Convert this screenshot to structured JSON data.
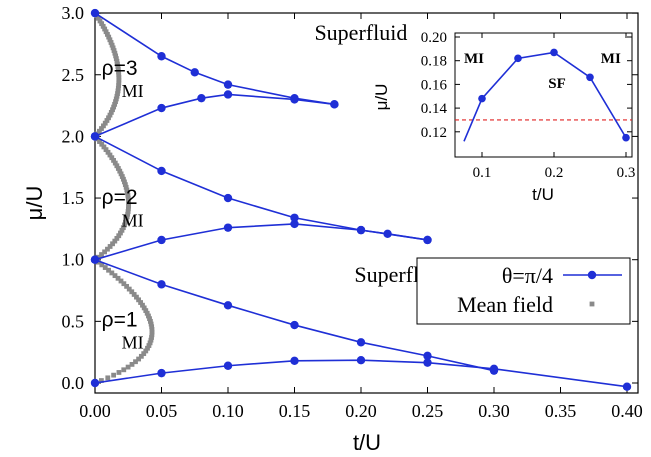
{
  "chart_data": [
    {
      "type": "line",
      "xlabel": "t/U",
      "ylabel": "μ/U",
      "xlim": [
        0,
        0.42
      ],
      "ylim": [
        -0.05,
        3.0
      ],
      "xticks": [
        "0.00",
        "0.05",
        "0.10",
        "0.15",
        "0.20",
        "0.25",
        "0.30",
        "0.35",
        "0.40"
      ],
      "yticks": [
        "0.0",
        "0.5",
        "1.0",
        "1.5",
        "2.0",
        "2.5",
        "3.0"
      ],
      "grid": false,
      "legend": "inside, right-middle",
      "series": [
        {
          "name": "θ=π/4",
          "color": "#1f2fd6",
          "marker": "circle",
          "segments": [
            [
              [
                0.0,
                0.0
              ],
              [
                0.05,
                0.08
              ],
              [
                0.1,
                0.14
              ],
              [
                0.15,
                0.18
              ],
              [
                0.2,
                0.185
              ],
              [
                0.25,
                0.165
              ],
              [
                0.3,
                0.115
              ],
              [
                0.4,
                -0.03
              ]
            ],
            [
              [
                0.0,
                1.0
              ],
              [
                0.05,
                0.8
              ],
              [
                0.1,
                0.63
              ],
              [
                0.15,
                0.47
              ],
              [
                0.2,
                0.33
              ],
              [
                0.25,
                0.22
              ],
              [
                0.3,
                0.1
              ]
            ],
            [
              [
                0.0,
                1.0
              ],
              [
                0.05,
                1.16
              ],
              [
                0.1,
                1.26
              ],
              [
                0.15,
                1.29
              ],
              [
                0.2,
                1.24
              ],
              [
                0.22,
                1.21
              ],
              [
                0.25,
                1.16
              ]
            ],
            [
              [
                0.0,
                2.0
              ],
              [
                0.05,
                1.72
              ],
              [
                0.1,
                1.5
              ],
              [
                0.15,
                1.34
              ],
              [
                0.2,
                1.24
              ],
              [
                0.25,
                1.16
              ]
            ],
            [
              [
                0.0,
                2.0
              ],
              [
                0.05,
                2.23
              ],
              [
                0.08,
                2.31
              ],
              [
                0.1,
                2.34
              ],
              [
                0.15,
                2.3
              ],
              [
                0.18,
                2.26
              ]
            ],
            [
              [
                0.0,
                3.0
              ],
              [
                0.05,
                2.65
              ],
              [
                0.075,
                2.52
              ],
              [
                0.1,
                2.42
              ],
              [
                0.15,
                2.31
              ],
              [
                0.18,
                2.26
              ]
            ]
          ]
        },
        {
          "name": "Mean field",
          "color": "#8a8a8a",
          "marker": "square",
          "curves": [
            {
              "rho": 1,
              "mu_low": 0,
              "mu_high": 1
            },
            {
              "rho": 2,
              "mu_low": 1,
              "mu_high": 2
            },
            {
              "rho": 3,
              "mu_low": 2,
              "mu_high": 3
            }
          ]
        }
      ],
      "annotations": [
        {
          "text": "Superfluid",
          "x": 0.165,
          "y": 2.78
        },
        {
          "text": "Superfluid",
          "x": 0.195,
          "y": 0.82
        },
        {
          "text": "ρ=3",
          "x": 0.005,
          "y": 2.5
        },
        {
          "text": "MI",
          "x": 0.02,
          "y": 2.32
        },
        {
          "text": "ρ=2",
          "x": 0.005,
          "y": 1.45
        },
        {
          "text": "MI",
          "x": 0.02,
          "y": 1.27
        },
        {
          "text": "ρ=1",
          "x": 0.005,
          "y": 0.46
        },
        {
          "text": "MI",
          "x": 0.02,
          "y": 0.28
        }
      ]
    },
    {
      "type": "line",
      "inset": true,
      "xlabel": "t/U",
      "ylabel": "μ/U",
      "xlim": [
        0.06,
        0.305
      ],
      "ylim": [
        0.112,
        0.2
      ],
      "xticks": [
        "0.1",
        "0.2",
        "0.3"
      ],
      "yticks": [
        "0.12",
        "0.14",
        "0.16",
        "0.18",
        "0.20"
      ],
      "series": [
        {
          "name": "θ=π/4",
          "color": "#1f2fd6",
          "marker": "circle",
          "values": [
            [
              0.075,
              0.112
            ],
            [
              0.1,
              0.148
            ],
            [
              0.15,
              0.182
            ],
            [
              0.2,
              0.187
            ],
            [
              0.25,
              0.166
            ],
            [
              0.3,
              0.115
            ]
          ]
        },
        {
          "name": "dashed level",
          "color": "#e02020",
          "style": "dashed",
          "y": 0.13
        }
      ],
      "annotations": [
        {
          "text": "MI",
          "x": 0.075,
          "y": 0.178
        },
        {
          "text": "SF",
          "x": 0.192,
          "y": 0.157
        },
        {
          "text": "MI",
          "x": 0.265,
          "y": 0.178
        }
      ]
    }
  ]
}
